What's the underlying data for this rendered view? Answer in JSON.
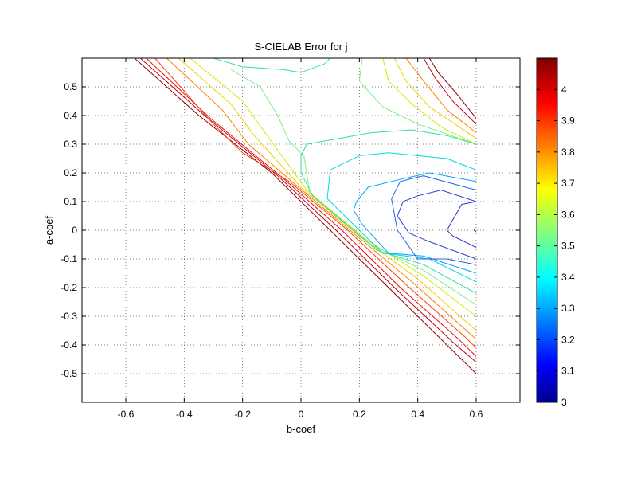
{
  "chart_data": {
    "type": "contour",
    "title": "S-CIELAB Error for j",
    "xlabel": "b-coef",
    "ylabel": "a-coef",
    "xlim": [
      -0.75,
      0.75
    ],
    "ylim": [
      -0.6,
      0.6
    ],
    "xticks": [
      -0.6,
      -0.4,
      -0.2,
      0,
      0.2,
      0.4,
      0.6
    ],
    "yticks": [
      -0.5,
      -0.4,
      -0.3,
      -0.2,
      -0.1,
      0,
      0.1,
      0.2,
      0.3,
      0.4,
      0.5
    ],
    "xtick_labels": [
      "-0.6",
      "-0.4",
      "-0.2",
      "0",
      "0.2",
      "0.4",
      "0.6"
    ],
    "ytick_labels": [
      "-0.5",
      "-0.4",
      "-0.3",
      "-0.2",
      "-0.1",
      "0",
      "0.1",
      "0.2",
      "0.3",
      "0.4",
      "0.5"
    ],
    "grid": true,
    "grid_style": "dotted",
    "colormap": "jet",
    "colorbar": {
      "range": [
        3.0,
        4.1
      ],
      "ticks": [
        3,
        3.1,
        3.2,
        3.3,
        3.4,
        3.5,
        3.6,
        3.7,
        3.8,
        3.9,
        4
      ],
      "tick_labels": [
        "3",
        "3.1",
        "3.2",
        "3.3",
        "3.4",
        "3.5",
        "3.6",
        "3.7",
        "3.8",
        "3.9",
        "4"
      ],
      "placement": "right"
    },
    "contours": [
      {
        "level": 4.05,
        "color": "#8b0000",
        "points": [
          [
            -0.57,
            0.6
          ],
          [
            -0.35,
            0.4
          ],
          [
            -0.1,
            0.2
          ],
          [
            0.1,
            0.0
          ],
          [
            0.3,
            -0.2
          ],
          [
            0.5,
            -0.4
          ],
          [
            0.6,
            -0.5
          ]
        ]
      },
      {
        "level": 4.05,
        "color": "#8b0000",
        "points": [
          [
            0.44,
            0.6
          ],
          [
            0.47,
            0.55
          ],
          [
            0.53,
            0.48
          ],
          [
            0.6,
            0.39
          ]
        ]
      },
      {
        "level": 3.99,
        "color": "#c0001a",
        "points": [
          [
            -0.55,
            0.6
          ],
          [
            -0.33,
            0.4
          ],
          [
            -0.08,
            0.19
          ],
          [
            0.12,
            0.0
          ],
          [
            0.32,
            -0.2
          ],
          [
            0.52,
            -0.39
          ],
          [
            0.6,
            -0.46
          ]
        ]
      },
      {
        "level": 3.99,
        "color": "#c0001a",
        "points": [
          [
            0.42,
            0.6
          ],
          [
            0.46,
            0.53
          ],
          [
            0.52,
            0.45
          ],
          [
            0.6,
            0.37
          ]
        ]
      },
      {
        "level": 3.93,
        "color": "#e81010",
        "points": [
          [
            -0.53,
            0.6
          ],
          [
            -0.31,
            0.39
          ],
          [
            -0.06,
            0.18
          ],
          [
            0.14,
            0.0
          ],
          [
            0.34,
            -0.2
          ],
          [
            0.54,
            -0.38
          ],
          [
            0.6,
            -0.44
          ]
        ]
      },
      {
        "level": 3.87,
        "color": "#ff4000",
        "points": [
          [
            -0.5,
            0.6
          ],
          [
            -0.3,
            0.37
          ],
          [
            -0.2,
            0.27
          ],
          [
            -0.04,
            0.17
          ],
          [
            0.16,
            0.0
          ],
          [
            0.36,
            -0.19
          ],
          [
            0.56,
            -0.37
          ],
          [
            0.6,
            -0.41
          ]
        ]
      },
      {
        "level": 3.81,
        "color": "#ff8000",
        "points": [
          [
            -0.46,
            0.6
          ],
          [
            -0.27,
            0.42
          ],
          [
            -0.18,
            0.3
          ],
          [
            -0.02,
            0.16
          ],
          [
            0.18,
            -0.01
          ],
          [
            0.38,
            -0.18
          ],
          [
            0.6,
            -0.38
          ]
        ]
      },
      {
        "level": 3.81,
        "color": "#ff8000",
        "points": [
          [
            0.36,
            0.6
          ],
          [
            0.42,
            0.52
          ],
          [
            0.5,
            0.42
          ],
          [
            0.6,
            0.34
          ]
        ]
      },
      {
        "level": 3.74,
        "color": "#f5d000",
        "points": [
          [
            -0.42,
            0.6
          ],
          [
            -0.24,
            0.44
          ],
          [
            -0.16,
            0.33
          ],
          [
            0.0,
            0.15
          ],
          [
            0.2,
            -0.02
          ],
          [
            0.4,
            -0.17
          ],
          [
            0.6,
            -0.35
          ]
        ]
      },
      {
        "level": 3.74,
        "color": "#f5d000",
        "points": [
          [
            0.32,
            0.6
          ],
          [
            0.36,
            0.52
          ],
          [
            0.44,
            0.43
          ],
          [
            0.6,
            0.32
          ]
        ]
      },
      {
        "level": 3.66,
        "color": "#c8f000",
        "points": [
          [
            -0.38,
            0.6
          ],
          [
            -0.2,
            0.45
          ],
          [
            -0.13,
            0.35
          ],
          [
            0.02,
            0.14
          ],
          [
            0.22,
            -0.03
          ],
          [
            0.42,
            -0.16
          ],
          [
            0.6,
            -0.3
          ]
        ]
      },
      {
        "level": 3.66,
        "color": "#c8f000",
        "points": [
          [
            0.28,
            0.6
          ],
          [
            0.3,
            0.52
          ],
          [
            0.38,
            0.44
          ],
          [
            0.48,
            0.36
          ],
          [
            0.6,
            0.3
          ]
        ]
      },
      {
        "level": 3.58,
        "color": "#80f080",
        "points": [
          [
            -0.24,
            0.56
          ],
          [
            -0.14,
            0.5
          ],
          [
            -0.08,
            0.4
          ],
          [
            -0.04,
            0.31
          ],
          [
            0.01,
            0.26
          ],
          [
            0.03,
            0.13
          ],
          [
            0.24,
            -0.05
          ],
          [
            0.42,
            -0.14
          ],
          [
            0.6,
            -0.26
          ]
        ]
      },
      {
        "level": 3.58,
        "color": "#80f080",
        "points": [
          [
            0.21,
            0.6
          ],
          [
            0.2,
            0.52
          ],
          [
            0.28,
            0.43
          ],
          [
            0.4,
            0.37
          ],
          [
            0.6,
            0.3
          ]
        ]
      },
      {
        "level": 3.5,
        "color": "#30e0a0",
        "points": [
          [
            -0.3,
            0.6
          ],
          [
            -0.2,
            0.57
          ],
          [
            -0.06,
            0.56
          ],
          [
            0.0,
            0.55
          ],
          [
            0.08,
            0.58
          ],
          [
            0.1,
            0.6
          ]
        ]
      },
      {
        "level": 3.5,
        "color": "#30e0a0",
        "points": [
          [
            0.6,
            0.3
          ],
          [
            0.5,
            0.33
          ],
          [
            0.38,
            0.35
          ],
          [
            0.24,
            0.34
          ],
          [
            0.02,
            0.3
          ],
          [
            0.0,
            0.26
          ],
          [
            0.0,
            0.2
          ],
          [
            0.04,
            0.12
          ],
          [
            0.26,
            -0.07
          ],
          [
            0.42,
            -0.12
          ],
          [
            0.6,
            -0.22
          ]
        ]
      },
      {
        "level": 3.42,
        "color": "#00d8e8",
        "points": [
          [
            0.6,
            0.21
          ],
          [
            0.5,
            0.25
          ],
          [
            0.3,
            0.27
          ],
          [
            0.2,
            0.26
          ],
          [
            0.1,
            0.21
          ],
          [
            0.09,
            0.11
          ],
          [
            0.16,
            0.04
          ],
          [
            0.28,
            -0.08
          ],
          [
            0.44,
            -0.1
          ],
          [
            0.6,
            -0.18
          ]
        ]
      },
      {
        "level": 3.34,
        "color": "#00a8f8",
        "points": [
          [
            0.6,
            0.17
          ],
          [
            0.44,
            0.2
          ],
          [
            0.35,
            0.18
          ],
          [
            0.23,
            0.15
          ],
          [
            0.19,
            0.1
          ],
          [
            0.18,
            0.07
          ],
          [
            0.21,
            0.02
          ],
          [
            0.3,
            -0.08
          ],
          [
            0.42,
            -0.09
          ],
          [
            0.6,
            -0.15
          ]
        ]
      },
      {
        "level": 3.26,
        "color": "#2060f0",
        "points": [
          [
            0.6,
            0.14
          ],
          [
            0.42,
            0.19
          ],
          [
            0.34,
            0.17
          ],
          [
            0.31,
            0.11
          ],
          [
            0.33,
            0.0
          ],
          [
            0.4,
            -0.1
          ],
          [
            0.5,
            -0.1
          ],
          [
            0.6,
            -0.12
          ]
        ]
      },
      {
        "level": 3.18,
        "color": "#3040d0",
        "points": [
          [
            0.6,
            0.1
          ],
          [
            0.48,
            0.14
          ],
          [
            0.4,
            0.12
          ],
          [
            0.35,
            0.1
          ],
          [
            0.33,
            0.05
          ],
          [
            0.37,
            -0.01
          ],
          [
            0.44,
            -0.04
          ],
          [
            0.6,
            -0.1
          ]
        ]
      },
      {
        "level": 3.12,
        "color": "#2a2ad0",
        "points": [
          [
            0.6,
            0.1
          ],
          [
            0.55,
            0.09
          ],
          [
            0.5,
            0.0
          ],
          [
            0.52,
            -0.02
          ],
          [
            0.6,
            -0.06
          ]
        ]
      },
      {
        "level": 3.05,
        "color": "#3030c0",
        "points": [
          [
            0.6,
            0.005
          ],
          [
            0.592,
            0.0
          ],
          [
            0.6,
            -0.005
          ]
        ]
      }
    ]
  }
}
